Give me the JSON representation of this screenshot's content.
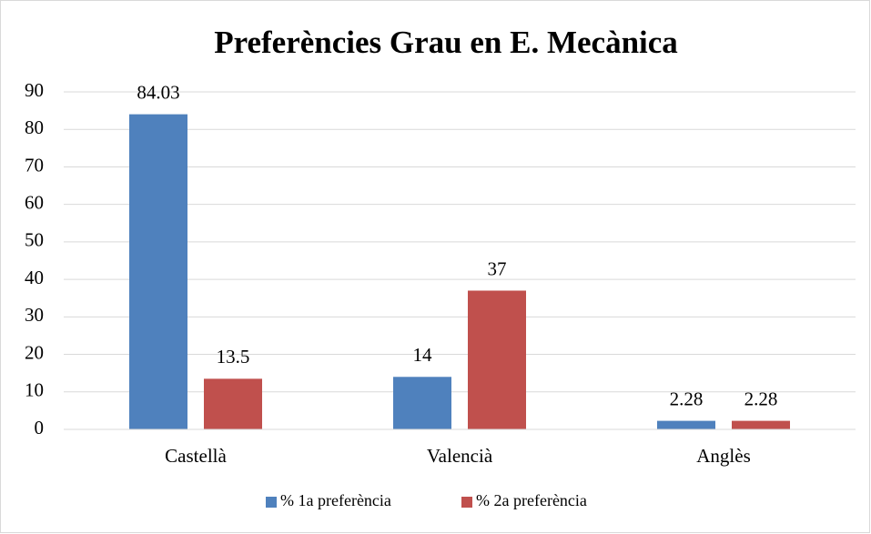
{
  "chart_data": {
    "type": "bar",
    "title": "Preferències Grau en E. Mecànica",
    "categories": [
      "Castellà",
      "Valencià",
      "Anglès"
    ],
    "series": [
      {
        "name": "% 1a preferència",
        "color": "#4f81bd",
        "values": [
          84.03,
          14,
          2.28
        ]
      },
      {
        "name": "% 2a preferència",
        "color": "#c0504d",
        "values": [
          13.5,
          37,
          2.28
        ]
      }
    ],
    "ylim": [
      0,
      90
    ],
    "yticks": [
      0,
      10,
      20,
      30,
      40,
      50,
      60,
      70,
      80,
      90
    ],
    "grid": true,
    "legend": "bottom"
  }
}
